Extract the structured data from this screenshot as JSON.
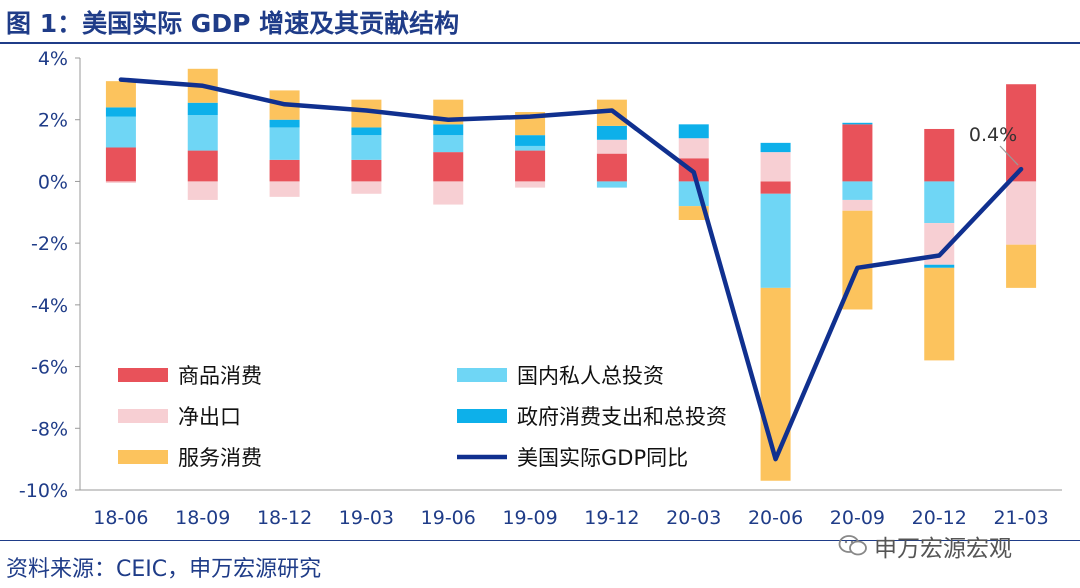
{
  "title": "图 1：美国实际 GDP 增速及其贡献结构",
  "source": "资料来源：CEIC，申万宏源研究",
  "watermark": "申万宏源宏观",
  "colors": {
    "goods": "#e8525a",
    "private_investment": "#6fd6f5",
    "net_exports": "#f7cfd3",
    "government": "#0db0ea",
    "services": "#fcc35d",
    "gdp_line": "#10308f",
    "axis_text": "#1f3c88"
  },
  "chart_data": {
    "type": "bar",
    "stacked": true,
    "categories": [
      "18-06",
      "18-09",
      "18-12",
      "19-03",
      "19-06",
      "19-09",
      "19-12",
      "20-03",
      "20-06",
      "20-09",
      "20-12",
      "21-03"
    ],
    "ylim": [
      -10,
      4
    ],
    "yticks": [
      "4%",
      "2%",
      "0%",
      "-2%",
      "-4%",
      "-6%",
      "-8%",
      "-10%"
    ],
    "ytick_values": [
      4,
      2,
      0,
      -2,
      -4,
      -6,
      -8,
      -10
    ],
    "series": [
      {
        "key": "goods",
        "name": "商品消费",
        "values": [
          1.1,
          1.0,
          0.7,
          0.7,
          0.95,
          1.0,
          0.9,
          0.75,
          -0.4,
          1.85,
          1.7,
          3.15
        ]
      },
      {
        "key": "private_investment",
        "name": "国内私人总投资",
        "values": [
          1.0,
          1.15,
          1.05,
          0.8,
          0.55,
          0.15,
          -0.2,
          -0.8,
          -3.05,
          -0.6,
          -1.35,
          0.0
        ]
      },
      {
        "key": "net_exports",
        "name": "净出口",
        "values": [
          -0.05,
          -0.6,
          -0.5,
          -0.4,
          -0.75,
          -0.2,
          0.45,
          0.65,
          0.95,
          -0.35,
          -1.35,
          -2.05
        ]
      },
      {
        "key": "government",
        "name": "政府消费支出和总投资",
        "values": [
          0.3,
          0.4,
          0.25,
          0.25,
          0.35,
          0.35,
          0.45,
          0.45,
          0.3,
          0.05,
          -0.1,
          0.0
        ]
      },
      {
        "key": "services",
        "name": "服务消费",
        "values": [
          0.85,
          1.1,
          0.95,
          0.9,
          0.8,
          0.75,
          0.85,
          -0.45,
          -6.25,
          -3.2,
          -3.0,
          -1.4
        ]
      }
    ],
    "line": {
      "name": "美国实际GDP同比",
      "values": [
        3.3,
        3.1,
        2.5,
        2.3,
        2.0,
        2.1,
        2.3,
        0.3,
        -9.0,
        -2.8,
        -2.4,
        0.4
      ]
    },
    "annotation": {
      "text": "0.4%",
      "category": "21-03",
      "value": 0.4
    },
    "legend": [
      {
        "key": "goods",
        "label": "商品消费",
        "type": "bar"
      },
      {
        "key": "private_investment",
        "label": "国内私人总投资",
        "type": "bar"
      },
      {
        "key": "net_exports",
        "label": "净出口",
        "type": "bar"
      },
      {
        "key": "government",
        "label": "政府消费支出和总投资",
        "type": "bar"
      },
      {
        "key": "services",
        "label": "服务消费",
        "type": "bar"
      },
      {
        "key": "gdp_line",
        "label": "美国实际GDP同比",
        "type": "line"
      }
    ]
  }
}
